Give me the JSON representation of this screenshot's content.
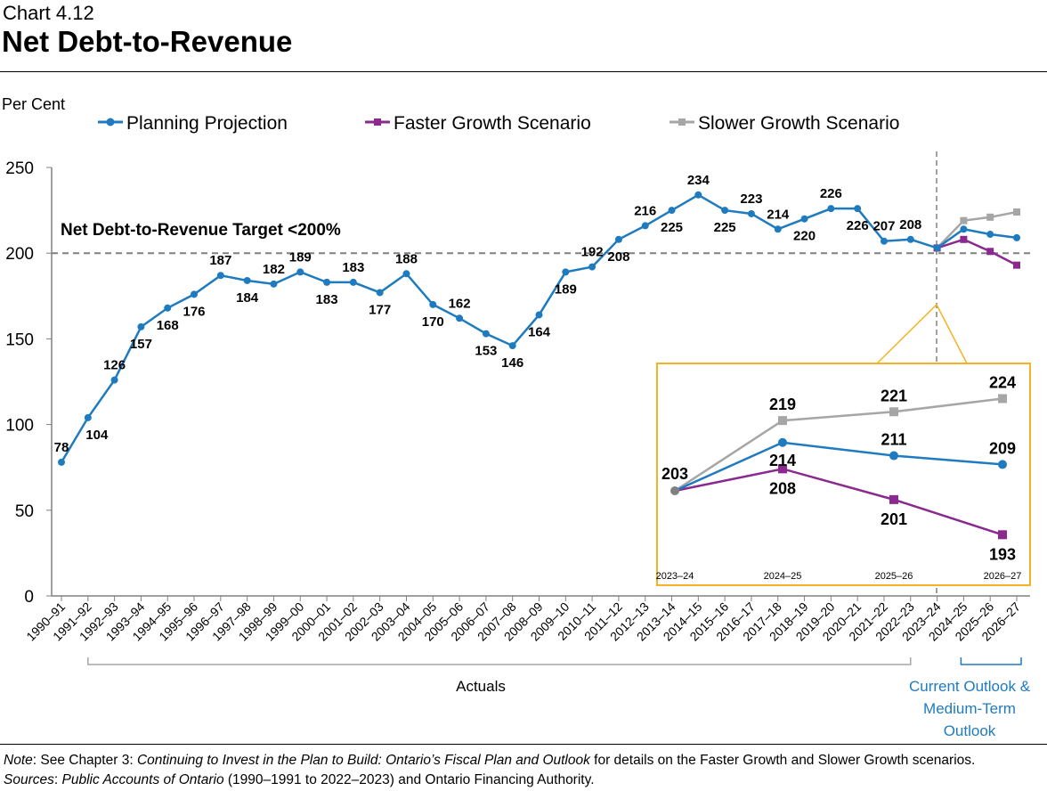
{
  "header": {
    "chart_number": "Chart 4.12",
    "title": "Net Debt-to-Revenue"
  },
  "notes": {
    "note_label": "Note",
    "note_prefix": ": See Chapter 3: ",
    "note_italic": "Continuing to Invest in the Plan to Build: Ontario’s Fiscal Plan and Outlook",
    "note_suffix": " for details on the Faster Growth and Slower Growth scenarios.",
    "sources_label": "Sources",
    "sources_prefix": ": ",
    "sources_italic": "Public Accounts of Ontario",
    "sources_suffix": " (1990–1991 to 2022–2023) and Ontario Financing Authority."
  },
  "chart_data": {
    "type": "line",
    "ylabel": "Per Cent",
    "ylim": [
      0,
      250
    ],
    "yticks": [
      0,
      50,
      100,
      150,
      200,
      250
    ],
    "grid": false,
    "legend_position": "top",
    "colors": {
      "planning": "#1F7BBF",
      "faster": "#8B2A8E",
      "slower": "#A6A6A6",
      "callout": "#F5B323",
      "target": "#808080"
    },
    "categories": [
      "1990–91",
      "1991–92",
      "1992–93",
      "1993–94",
      "1994–95",
      "1995–96",
      "1996–97",
      "1997–98",
      "1998–99",
      "1999–00",
      "2000–01",
      "2001–02",
      "2002–03",
      "2003–04",
      "2004–05",
      "2005–06",
      "2006–07",
      "2007–08",
      "2008–09",
      "2009–10",
      "2010–11",
      "2011–12",
      "2012–13",
      "2013–14",
      "2014–15",
      "2015–16",
      "2016–17",
      "2017–18",
      "2018–19",
      "2019–20",
      "2020–21",
      "2021–22",
      "2022–23",
      "2023–24",
      "2024–25",
      "2025–26",
      "2026–27"
    ],
    "series": [
      {
        "name": "Planning Projection",
        "values": [
          78,
          104,
          126,
          157,
          168,
          176,
          187,
          184,
          182,
          189,
          183,
          183,
          177,
          188,
          170,
          162,
          153,
          146,
          164,
          189,
          192,
          208,
          216,
          225,
          234,
          225,
          223,
          214,
          220,
          226,
          226,
          207,
          208,
          203,
          214,
          211,
          209
        ]
      },
      {
        "name": "Faster Growth Scenario",
        "values": [
          null,
          null,
          null,
          null,
          null,
          null,
          null,
          null,
          null,
          null,
          null,
          null,
          null,
          null,
          null,
          null,
          null,
          null,
          null,
          null,
          null,
          null,
          null,
          null,
          null,
          null,
          null,
          null,
          null,
          null,
          null,
          null,
          null,
          203,
          208,
          201,
          193
        ]
      },
      {
        "name": "Slower Growth Scenario",
        "values": [
          null,
          null,
          null,
          null,
          null,
          null,
          null,
          null,
          null,
          null,
          null,
          null,
          null,
          null,
          null,
          null,
          null,
          null,
          null,
          null,
          null,
          null,
          null,
          null,
          null,
          null,
          null,
          null,
          null,
          null,
          null,
          null,
          null,
          203,
          219,
          221,
          224
        ]
      }
    ],
    "target": {
      "value": 200,
      "label": "Net Debt-to-Revenue Target <200%"
    },
    "inset": {
      "categories": [
        "2023–24",
        "2024–25",
        "2025–26",
        "2026–27"
      ]
    },
    "brackets": {
      "actuals": "Actuals",
      "outlook": "Current Outlook & Medium-Term Outlook",
      "outlook_lines": [
        "Current Outlook &",
        "Medium-Term",
        "Outlook"
      ]
    }
  }
}
